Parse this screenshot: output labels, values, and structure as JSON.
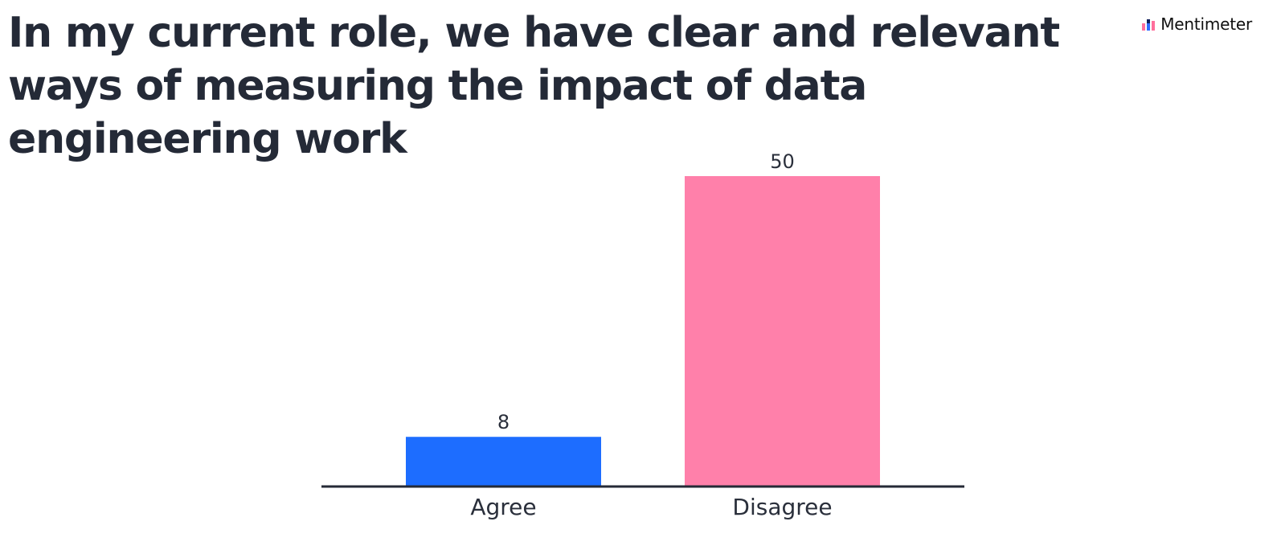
{
  "title": "In my current role, we have clear and relevant ways of measuring the impact of data engineering work",
  "brand": {
    "name": "Mentimeter",
    "icon": "mentimeter-bars-icon"
  },
  "chart_data": {
    "type": "bar",
    "title": "In my current role, we have clear and relevant ways of measuring the impact of data engineering work",
    "categories": [
      "Agree",
      "Disagree"
    ],
    "values": [
      8,
      50
    ],
    "colors": [
      "#1d6dff",
      "#ff80aa"
    ],
    "xlabel": "",
    "ylabel": "",
    "ylim": [
      0,
      50
    ],
    "grid": false,
    "legend": "none",
    "data_labels": true
  }
}
